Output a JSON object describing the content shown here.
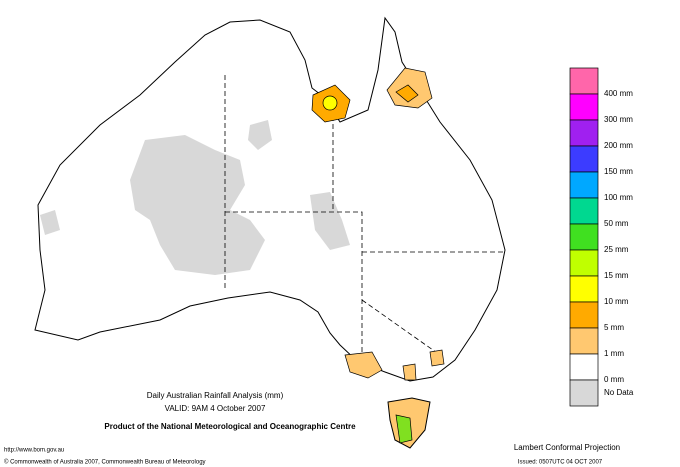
{
  "title": "Daily Australian Rainfall Analysis (mm)",
  "valid": "VALID: 9AM  4 October 2007",
  "product": "Product of the National Meteorological and Oceanographic Centre",
  "projection": "Lambert Conformal Projection",
  "url": "http://www.bom.gov.au",
  "copyright": "© Commonwealth of Australia 2007, Commonwealth Bureau of Meteorology",
  "issued": "Issued: 0507UTC 04 OCT 2007",
  "legend": {
    "colors": [
      "#ff66aa",
      "#ff00ff",
      "#a020f0",
      "#3c3cff",
      "#00a8ff",
      "#00d890",
      "#40e020",
      "#c0ff00",
      "#ffff00",
      "#ffaa00",
      "#ffc870",
      "#ffffff",
      "#d8d8d8"
    ],
    "labels": [
      "400 mm",
      "300 mm",
      "200 mm",
      "150 mm",
      "100 mm",
      "50 mm",
      "25 mm",
      "15 mm",
      "10 mm",
      "5 mm",
      "1 mm",
      "0 mm"
    ],
    "no_data": "No Data"
  }
}
